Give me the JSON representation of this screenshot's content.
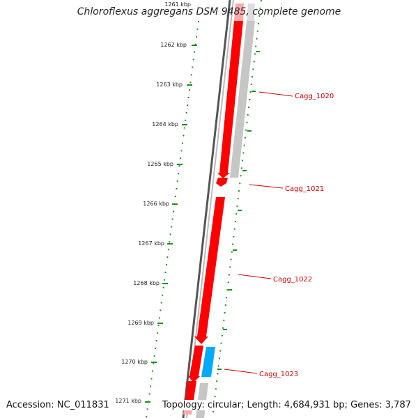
{
  "title": "Chloroflexus aggregans DSM 9485, complete genome",
  "accession": "Accession: NC_011831",
  "summary": "Topology: circular; Length: 4,684,931 bp; Genes: 3,787",
  "colors": {
    "forward_gene": "#ff0000",
    "reverse_gene": "#c8c8c8",
    "rna_gene": "#00aaff",
    "backbone": "#777777",
    "tick": "#228b22",
    "label": "#cc0000"
  },
  "ticks": [
    {
      "label": "1261 kbp"
    },
    {
      "label": "1262 kbp"
    },
    {
      "label": "1263 kbp"
    },
    {
      "label": "1264 kbp"
    },
    {
      "label": "1265 kbp"
    },
    {
      "label": "1266 kbp"
    },
    {
      "label": "1267 kbp"
    },
    {
      "label": "1268 kbp"
    },
    {
      "label": "1269 kbp"
    },
    {
      "label": "1270 kbp"
    },
    {
      "label": "1271 kbp"
    }
  ],
  "gene_labels": [
    {
      "name": "Cagg_1020"
    },
    {
      "name": "Cagg_1021"
    },
    {
      "name": "Cagg_1022"
    },
    {
      "name": "Cagg_1023"
    }
  ]
}
